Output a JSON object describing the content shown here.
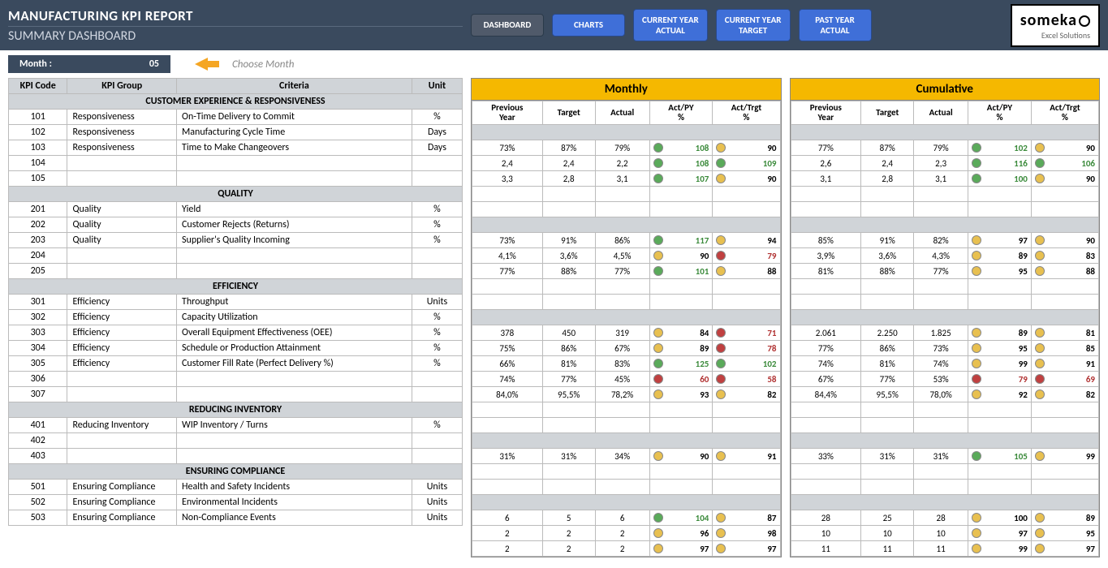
{
  "colors": {
    "headerBg": "#3a4a5e",
    "accent": "#f5b800",
    "navBtn": "#3f6fd8",
    "green": "#5aaa5a",
    "yellow": "#e8c050",
    "red": "#c04040",
    "section": "#d0d4d8"
  },
  "header": {
    "title": "MANUFACTURING KPI REPORT",
    "subtitle": "SUMMARY DASHBOARD",
    "nav": [
      {
        "label": "DASHBOARD",
        "active": true
      },
      {
        "label": "CHARTS",
        "active": false
      },
      {
        "label": "CURRENT YEAR ACTUAL",
        "active": false
      },
      {
        "label": "CURRENT YEAR TARGET",
        "active": false
      },
      {
        "label": "PAST YEAR ACTUAL",
        "active": false
      }
    ],
    "logo": {
      "brand": "someka",
      "tag": "Excel Solutions"
    }
  },
  "month": {
    "label": "Month :",
    "value": "05",
    "hint": "Choose Month"
  },
  "leftCols": {
    "code": "KPI Code",
    "group": "KPI Group",
    "criteria": "Criteria",
    "unit": "Unit"
  },
  "blockTitles": {
    "monthly": "Monthly",
    "cumulative": "Cumulative"
  },
  "dataCols": [
    "Previous Year",
    "Target",
    "Actual",
    "Act/PY %",
    "Act/Trgt %"
  ],
  "sections": [
    {
      "title": "CUSTOMER EXPERIENCE & RESPONSIVENESS",
      "rows": [
        {
          "code": "101",
          "group": "Responsiveness",
          "criteria": "On-Time Delivery to Commit",
          "unit": "%",
          "m": [
            "73%",
            "87%",
            "79%",
            [
              "green",
              "108",
              "g"
            ],
            [
              "yellow",
              "90",
              "n"
            ]
          ],
          "c": [
            "77%",
            "87%",
            "79%",
            [
              "green",
              "102",
              "g"
            ],
            [
              "yellow",
              "90",
              "n"
            ]
          ]
        },
        {
          "code": "102",
          "group": "Responsiveness",
          "criteria": "Manufacturing Cycle Time",
          "unit": "Days",
          "m": [
            "2,4",
            "2,4",
            "2,2",
            [
              "green",
              "108",
              "g"
            ],
            [
              "green",
              "109",
              "g"
            ]
          ],
          "c": [
            "2,6",
            "2,4",
            "2,3",
            [
              "green",
              "116",
              "g"
            ],
            [
              "green",
              "106",
              "g"
            ]
          ]
        },
        {
          "code": "103",
          "group": "Responsiveness",
          "criteria": "Time to Make Changeovers",
          "unit": "Days",
          "m": [
            "3,3",
            "2,8",
            "3,1",
            [
              "green",
              "107",
              "g"
            ],
            [
              "yellow",
              "90",
              "n"
            ]
          ],
          "c": [
            "3,1",
            "2,8",
            "3,1",
            [
              "green",
              "100",
              "g"
            ],
            [
              "yellow",
              "90",
              "n"
            ]
          ]
        },
        {
          "code": "104",
          "group": "",
          "criteria": "",
          "unit": ""
        },
        {
          "code": "105",
          "group": "",
          "criteria": "",
          "unit": ""
        }
      ]
    },
    {
      "title": "QUALITY",
      "rows": [
        {
          "code": "201",
          "group": "Quality",
          "criteria": "Yield",
          "unit": "%",
          "m": [
            "73%",
            "91%",
            "86%",
            [
              "green",
              "117",
              "g"
            ],
            [
              "yellow",
              "94",
              "n"
            ]
          ],
          "c": [
            "85%",
            "91%",
            "82%",
            [
              "yellow",
              "97",
              "n"
            ],
            [
              "yellow",
              "90",
              "n"
            ]
          ]
        },
        {
          "code": "202",
          "group": "Quality",
          "criteria": "Customer Rejects (Returns)",
          "unit": "%",
          "m": [
            "4,1%",
            "3,6%",
            "4,5%",
            [
              "yellow",
              "90",
              "n"
            ],
            [
              "red",
              "79",
              "r"
            ]
          ],
          "c": [
            "3,9%",
            "3,6%",
            "4,3%",
            [
              "yellow",
              "89",
              "n"
            ],
            [
              "yellow",
              "83",
              "n"
            ]
          ]
        },
        {
          "code": "203",
          "group": "Quality",
          "criteria": "Supplier's Quality Incoming",
          "unit": "%",
          "m": [
            "77%",
            "88%",
            "77%",
            [
              "green",
              "101",
              "g"
            ],
            [
              "yellow",
              "88",
              "n"
            ]
          ],
          "c": [
            "81%",
            "88%",
            "77%",
            [
              "yellow",
              "95",
              "n"
            ],
            [
              "yellow",
              "88",
              "n"
            ]
          ]
        },
        {
          "code": "204",
          "group": "",
          "criteria": "",
          "unit": ""
        },
        {
          "code": "205",
          "group": "",
          "criteria": "",
          "unit": ""
        }
      ]
    },
    {
      "title": "EFFICIENCY",
      "rows": [
        {
          "code": "301",
          "group": "Efficiency",
          "criteria": "Throughput",
          "unit": "Units",
          "m": [
            "378",
            "450",
            "319",
            [
              "yellow",
              "84",
              "n"
            ],
            [
              "red",
              "71",
              "r"
            ]
          ],
          "c": [
            "2.061",
            "2.250",
            "1.825",
            [
              "yellow",
              "89",
              "n"
            ],
            [
              "yellow",
              "81",
              "n"
            ]
          ]
        },
        {
          "code": "302",
          "group": "Efficiency",
          "criteria": "Capacity Utilization",
          "unit": "%",
          "m": [
            "75%",
            "86%",
            "67%",
            [
              "yellow",
              "89",
              "n"
            ],
            [
              "red",
              "78",
              "r"
            ]
          ],
          "c": [
            "77%",
            "86%",
            "73%",
            [
              "yellow",
              "95",
              "n"
            ],
            [
              "yellow",
              "85",
              "n"
            ]
          ]
        },
        {
          "code": "303",
          "group": "Efficiency",
          "criteria": "Overall Equipment Effectiveness (OEE)",
          "unit": "%",
          "m": [
            "66%",
            "81%",
            "83%",
            [
              "green",
              "125",
              "g"
            ],
            [
              "green",
              "102",
              "g"
            ]
          ],
          "c": [
            "74%",
            "81%",
            "74%",
            [
              "yellow",
              "99",
              "n"
            ],
            [
              "yellow",
              "91",
              "n"
            ]
          ]
        },
        {
          "code": "304",
          "group": "Efficiency",
          "criteria": "Schedule or Production Attainment",
          "unit": "%",
          "m": [
            "74%",
            "77%",
            "45%",
            [
              "red",
              "60",
              "r"
            ],
            [
              "red",
              "58",
              "r"
            ]
          ],
          "c": [
            "67%",
            "77%",
            "53%",
            [
              "red",
              "79",
              "r"
            ],
            [
              "red",
              "69",
              "r"
            ]
          ]
        },
        {
          "code": "305",
          "group": "Efficiency",
          "criteria": "Customer Fill Rate (Perfect Delivery %)",
          "unit": "%",
          "m": [
            "84,0%",
            "95,5%",
            "78,2%",
            [
              "yellow",
              "93",
              "n"
            ],
            [
              "yellow",
              "82",
              "n"
            ]
          ],
          "c": [
            "84,4%",
            "95,5%",
            "78,0%",
            [
              "yellow",
              "92",
              "n"
            ],
            [
              "yellow",
              "82",
              "n"
            ]
          ]
        },
        {
          "code": "306",
          "group": "",
          "criteria": "",
          "unit": ""
        },
        {
          "code": "307",
          "group": "",
          "criteria": "",
          "unit": ""
        }
      ]
    },
    {
      "title": "REDUCING INVENTORY",
      "rows": [
        {
          "code": "401",
          "group": "Reducing Inventory",
          "criteria": "WIP Inventory / Turns",
          "unit": "%",
          "m": [
            "31%",
            "31%",
            "34%",
            [
              "yellow",
              "90",
              "n"
            ],
            [
              "yellow",
              "91",
              "n"
            ]
          ],
          "c": [
            "33%",
            "31%",
            "31%",
            [
              "green",
              "105",
              "g"
            ],
            [
              "yellow",
              "99",
              "n"
            ]
          ]
        },
        {
          "code": "402",
          "group": "",
          "criteria": "",
          "unit": ""
        },
        {
          "code": "403",
          "group": "",
          "criteria": "",
          "unit": ""
        }
      ]
    },
    {
      "title": "ENSURING COMPLIANCE",
      "rows": [
        {
          "code": "501",
          "group": "Ensuring Compliance",
          "criteria": "Health and Safety Incidents",
          "unit": "Units",
          "m": [
            "6",
            "5",
            "6",
            [
              "green",
              "104",
              "g"
            ],
            [
              "yellow",
              "87",
              "n"
            ]
          ],
          "c": [
            "28",
            "25",
            "28",
            [
              "yellow",
              "100",
              "n"
            ],
            [
              "yellow",
              "89",
              "n"
            ]
          ]
        },
        {
          "code": "502",
          "group": "Ensuring Compliance",
          "criteria": "Environmental Incidents",
          "unit": "Units",
          "m": [
            "2",
            "2",
            "2",
            [
              "yellow",
              "96",
              "n"
            ],
            [
              "yellow",
              "98",
              "n"
            ]
          ],
          "c": [
            "10",
            "10",
            "10",
            [
              "yellow",
              "97",
              "n"
            ],
            [
              "yellow",
              "95",
              "n"
            ]
          ]
        },
        {
          "code": "503",
          "group": "Ensuring Compliance",
          "criteria": "Non-Compliance Events",
          "unit": "Units",
          "m": [
            "2",
            "2",
            "2",
            [
              "yellow",
              "97",
              "n"
            ],
            [
              "yellow",
              "97",
              "n"
            ]
          ],
          "c": [
            "11",
            "11",
            "11",
            [
              "yellow",
              "99",
              "n"
            ],
            [
              "yellow",
              "97",
              "n"
            ]
          ]
        }
      ]
    }
  ]
}
